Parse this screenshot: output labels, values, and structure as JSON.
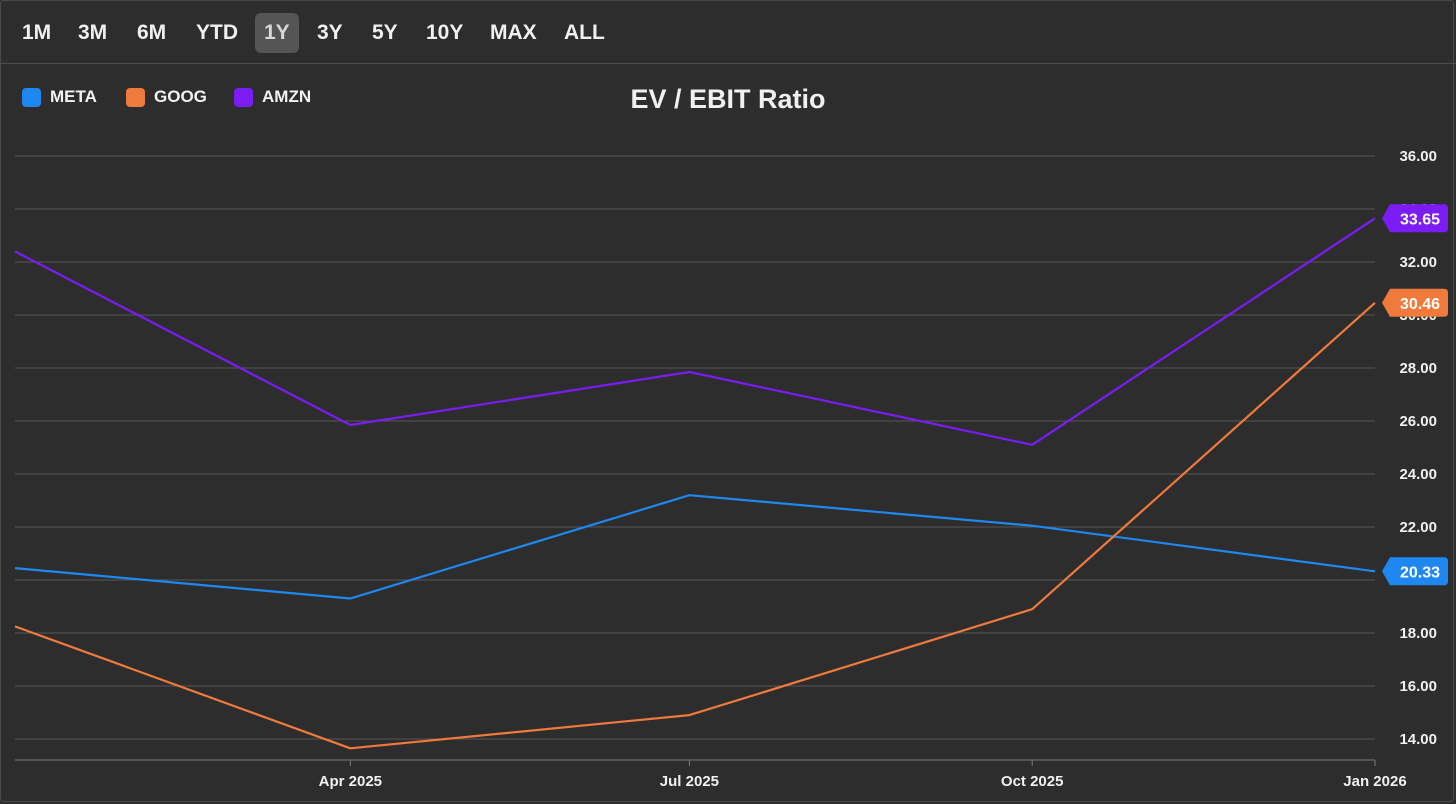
{
  "range_selector": {
    "options": [
      "1M",
      "3M",
      "6M",
      "YTD",
      "1Y",
      "3Y",
      "5Y",
      "10Y",
      "MAX",
      "ALL"
    ],
    "active": "1Y"
  },
  "legend": {
    "placement": "top-left",
    "items": [
      {
        "label": "META",
        "color": "#1e88f0"
      },
      {
        "label": "GOOG",
        "color": "#f07a3c"
      },
      {
        "label": "AMZN",
        "color": "#7b1cf5"
      }
    ]
  },
  "chart_data": {
    "type": "line",
    "title": "EV / EBIT Ratio",
    "xlabel": "",
    "ylabel": "",
    "x": [
      "2025-01-01",
      "2025-04-01",
      "2025-07-01",
      "2025-10-01",
      "2026-01-01"
    ],
    "x_tick_labels": [
      "Apr 2025",
      "Jul 2025",
      "Oct 2025",
      "Jan 2026"
    ],
    "y_ticks": [
      "14.00",
      "16.00",
      "18.00",
      "20.00",
      "22.00",
      "24.00",
      "26.00",
      "28.00",
      "30.00",
      "32.00",
      "34.00",
      "36.00"
    ],
    "ylim": [
      13.0,
      37.0
    ],
    "grid": true,
    "series": [
      {
        "name": "META",
        "color": "#1e88f0",
        "values": [
          20.45,
          19.3,
          23.2,
          22.05,
          20.33
        ],
        "last_label": "20.33"
      },
      {
        "name": "GOOG",
        "color": "#f07a3c",
        "values": [
          18.25,
          13.65,
          14.9,
          18.9,
          30.46
        ],
        "last_label": "30.46"
      },
      {
        "name": "AMZN",
        "color": "#7b1cf5",
        "values": [
          32.4,
          25.85,
          27.85,
          25.1,
          33.65
        ],
        "last_label": "33.65"
      }
    ]
  }
}
